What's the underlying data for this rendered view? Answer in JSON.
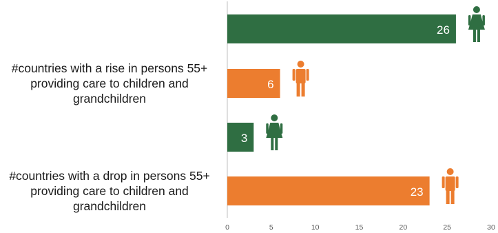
{
  "chart_data": {
    "type": "bar",
    "orientation": "horizontal",
    "categories": [
      "#countries with a rise in persons 55+\nproviding care to children and\ngrandchildren",
      "#countries with a drop in persons 55+\nproviding care to children and\ngrandchildren"
    ],
    "bars": [
      {
        "category_index": 0,
        "value": 26,
        "label": "26",
        "color": "#2f6e42",
        "icon": "female-person-icon"
      },
      {
        "category_index": 0,
        "value": 6,
        "label": "6",
        "color": "#ec7d2f",
        "icon": "male-person-icon"
      },
      {
        "category_index": 1,
        "value": 3,
        "label": "3",
        "color": "#2f6e42",
        "icon": "female-person-icon"
      },
      {
        "category_index": 1,
        "value": 23,
        "label": "23",
        "color": "#ec7d2f",
        "icon": "male-person-icon"
      }
    ],
    "xlim": [
      0,
      30
    ],
    "xticks": [
      0,
      5,
      10,
      15,
      20,
      25,
      30
    ],
    "grid": false,
    "legend": "none"
  }
}
